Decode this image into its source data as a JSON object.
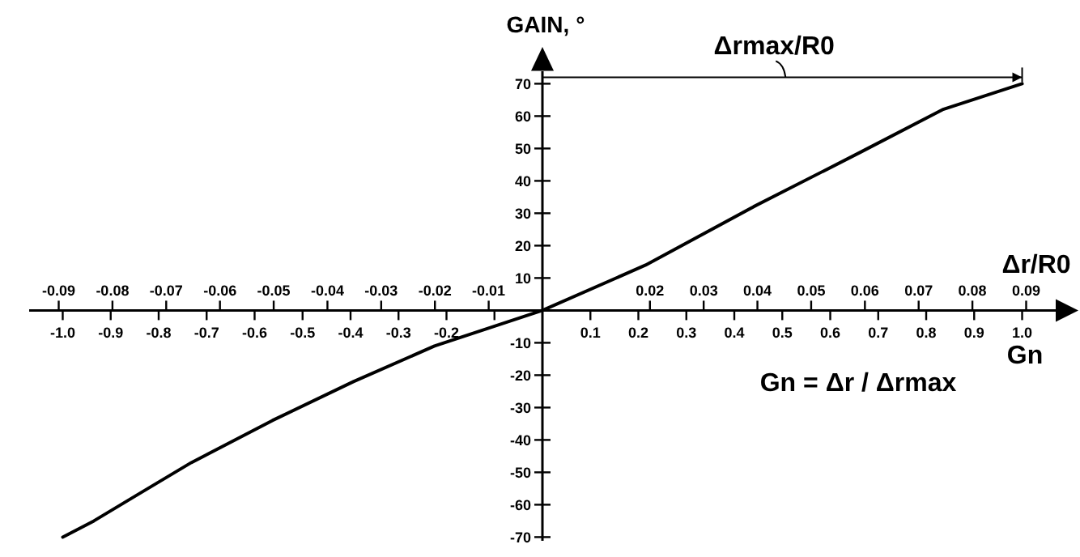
{
  "chart_data": {
    "type": "line",
    "xlabel": "Gn",
    "x2label": "Δr/R0",
    "ylabel": "GAIN, °",
    "x": [
      -1.0,
      -0.935,
      -0.845,
      -0.732,
      -0.563,
      -0.394,
      -0.225,
      0,
      0.215,
      0.44,
      0.665,
      0.834,
      1.0
    ],
    "series": [
      {
        "color": "#000000",
        "values": [
          -70,
          -65,
          -57,
          -47,
          -34,
          -22,
          -11,
          0,
          14,
          32,
          49,
          62,
          70
        ]
      }
    ],
    "xlim": [
      -1.07,
      1.07
    ],
    "xticks": [
      {
        "value": -1.0,
        "label": "-1.0"
      },
      -0.9,
      -0.8,
      -0.7,
      -0.6,
      -0.5,
      -0.4,
      -0.3,
      -0.2,
      {
        "value": -0.1,
        "label": null
      },
      0.1,
      0.2,
      0.3,
      0.4,
      0.5,
      0.6,
      0.7,
      0.8,
      0.9,
      {
        "value": 1.0,
        "label": "1.0"
      }
    ],
    "x2lim": [
      -0.0955,
      0.0955
    ],
    "x2ticks": [
      -0.09,
      -0.08,
      -0.07,
      -0.06,
      -0.05,
      -0.04,
      -0.03,
      -0.02,
      -0.01,
      0.02,
      0.03,
      0.04,
      0.05,
      0.06,
      0.07,
      0.08,
      0.09
    ],
    "ylim": [
      -71,
      74
    ],
    "yticks": [
      -70,
      -60,
      -50,
      -40,
      -30,
      -20,
      -10,
      {
        "value": 0,
        "label": null
      },
      10,
      20,
      30,
      40,
      50,
      60,
      70
    ],
    "annotations": [
      "Δrmax/R0",
      "Gn = Δr / Δrmax"
    ],
    "grid": false,
    "marker": "none",
    "line_style": "solid"
  }
}
